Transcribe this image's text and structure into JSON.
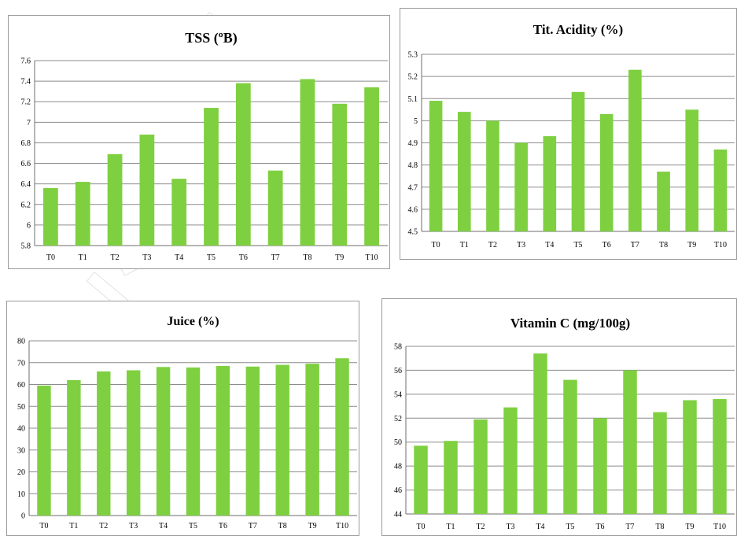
{
  "bar_color": "#7ED040",
  "chart_data": [
    {
      "type": "bar",
      "title": "TSS (ºB)",
      "categories": [
        "T0",
        "T1",
        "T2",
        "T3",
        "T4",
        "T5",
        "T6",
        "T7",
        "T8",
        "T9",
        "T10"
      ],
      "values": [
        6.36,
        6.42,
        6.69,
        6.88,
        6.45,
        7.14,
        7.38,
        6.53,
        7.42,
        7.18,
        7.34
      ],
      "ylim": [
        5.8,
        7.6
      ],
      "yticks": [
        "5.8",
        "6",
        "6.2",
        "6.4",
        "6.6",
        "6.8",
        "7",
        "7.2",
        "7.4",
        "7.6"
      ],
      "grid": true
    },
    {
      "type": "bar",
      "title": "Tit. Acidity (%)",
      "categories": [
        "T0",
        "T1",
        "T2",
        "T3",
        "T4",
        "T5",
        "T6",
        "T7",
        "T8",
        "T9",
        "T10"
      ],
      "values": [
        5.09,
        5.04,
        5.0,
        4.9,
        4.93,
        5.13,
        5.03,
        5.23,
        4.77,
        5.05,
        4.87
      ],
      "ylim": [
        4.5,
        5.3
      ],
      "yticks": [
        "4.5",
        "4.6",
        "4.7",
        "4.8",
        "4.9",
        "5",
        "5.1",
        "5.2",
        "5.3"
      ],
      "grid": true
    },
    {
      "type": "bar",
      "title": "Juice (%)",
      "categories": [
        "T0",
        "T1",
        "T2",
        "T3",
        "T4",
        "T5",
        "T6",
        "T7",
        "T8",
        "T9",
        "T10"
      ],
      "values": [
        59.5,
        62,
        66,
        66.5,
        68,
        67.8,
        68.5,
        68.2,
        69,
        69.5,
        72
      ],
      "ylim": [
        0,
        80
      ],
      "yticks": [
        "0",
        "10",
        "20",
        "30",
        "40",
        "50",
        "60",
        "70",
        "80"
      ],
      "grid": true
    },
    {
      "type": "bar",
      "title": "Vitamin C (mg/100g)",
      "categories": [
        "T0",
        "T1",
        "T2",
        "T3",
        "T4",
        "T5",
        "T6",
        "T7",
        "T8",
        "T9",
        "T10"
      ],
      "values": [
        49.7,
        50.1,
        51.9,
        52.9,
        57.4,
        55.2,
        52.0,
        56.0,
        52.5,
        53.5,
        53.6
      ],
      "ylim": [
        44,
        58
      ],
      "yticks": [
        "44",
        "46",
        "48",
        "50",
        "52",
        "54",
        "56",
        "58"
      ],
      "grid": true
    }
  ]
}
